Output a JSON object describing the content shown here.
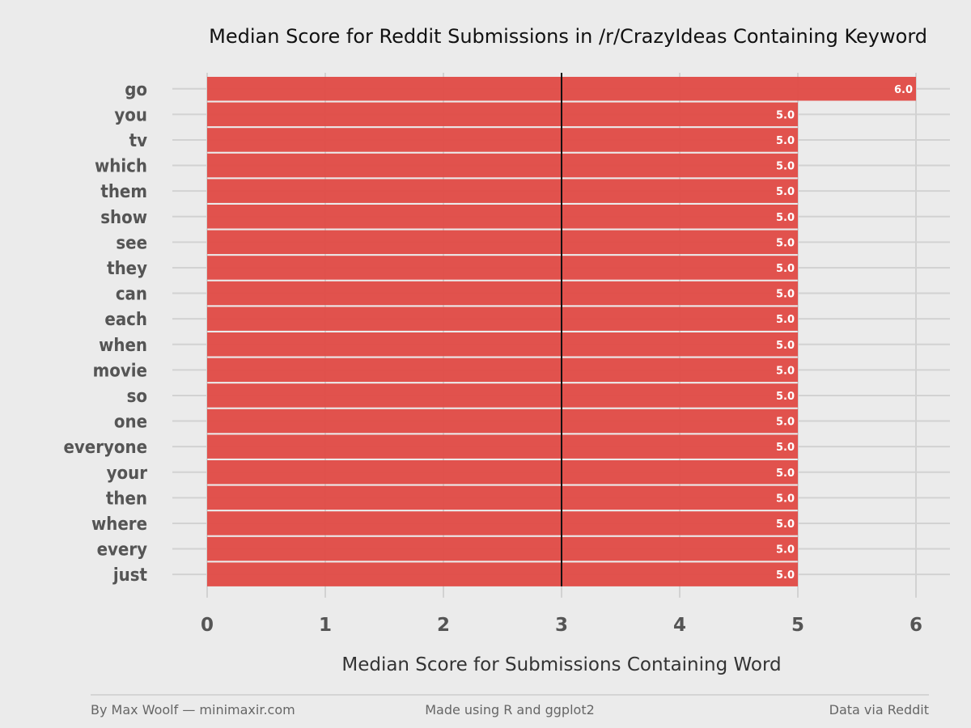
{
  "chart_data": {
    "type": "bar",
    "orientation": "horizontal",
    "title": "Median Score for Reddit Submissions in /r/CrazyIdeas Containing Keyword",
    "xlabel": "Median Score for Submissions Containing Word",
    "ylabel": "",
    "categories": [
      "go",
      "you",
      "tv",
      "which",
      "them",
      "show",
      "see",
      "they",
      "can",
      "each",
      "when",
      "movie",
      "so",
      "one",
      "everyone",
      "your",
      "then",
      "where",
      "every",
      "just"
    ],
    "values": [
      6,
      5,
      5,
      5,
      5,
      5,
      5,
      5,
      5,
      5,
      5,
      5,
      5,
      5,
      5,
      5,
      5,
      5,
      5,
      5
    ],
    "value_labels": [
      "6.0",
      "5.0",
      "5.0",
      "5.0",
      "5.0",
      "5.0",
      "5.0",
      "5.0",
      "5.0",
      "5.0",
      "5.0",
      "5.0",
      "5.0",
      "5.0",
      "5.0",
      "5.0",
      "5.0",
      "5.0",
      "5.0",
      "5.0"
    ],
    "xlim": [
      0,
      6
    ],
    "x_ticks": [
      "0",
      "1",
      "2",
      "3",
      "4",
      "5",
      "6"
    ],
    "reference_line": 3,
    "grid": true,
    "colors": {
      "bar": "#e04a45",
      "background": "#ebebeb",
      "grid": "#d2d2d2",
      "reference_line": "#111111"
    }
  },
  "footer": {
    "left": "By Max Woolf — minimaxir.com",
    "center": "Made using R and ggplot2",
    "right": "Data via Reddit"
  }
}
